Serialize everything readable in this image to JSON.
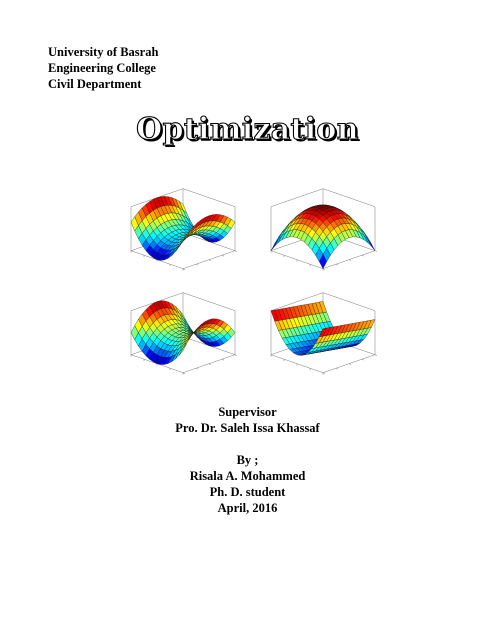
{
  "header": {
    "university": "University of Basrah",
    "college": "Engineering College",
    "department": "Civil Department"
  },
  "title": "Optimization",
  "figure": {
    "panels": [
      {
        "name": "saddle-bowl-surface"
      },
      {
        "name": "dome-surface"
      },
      {
        "name": "saddle-surface"
      },
      {
        "name": "trough-surface"
      }
    ],
    "colormap": [
      "#00008f",
      "#0000ff",
      "#00a0ff",
      "#00ffff",
      "#7fff7f",
      "#ffff00",
      "#ff8000",
      "#ff0000",
      "#800000"
    ]
  },
  "credits": {
    "supervisor_label": "Supervisor",
    "supervisor_name": "Pro. Dr. Saleh Issa Khassaf",
    "by_label": "By ;",
    "author": "Risala A. Mohammed",
    "degree": "Ph. D. student",
    "date": "April, 2016"
  }
}
